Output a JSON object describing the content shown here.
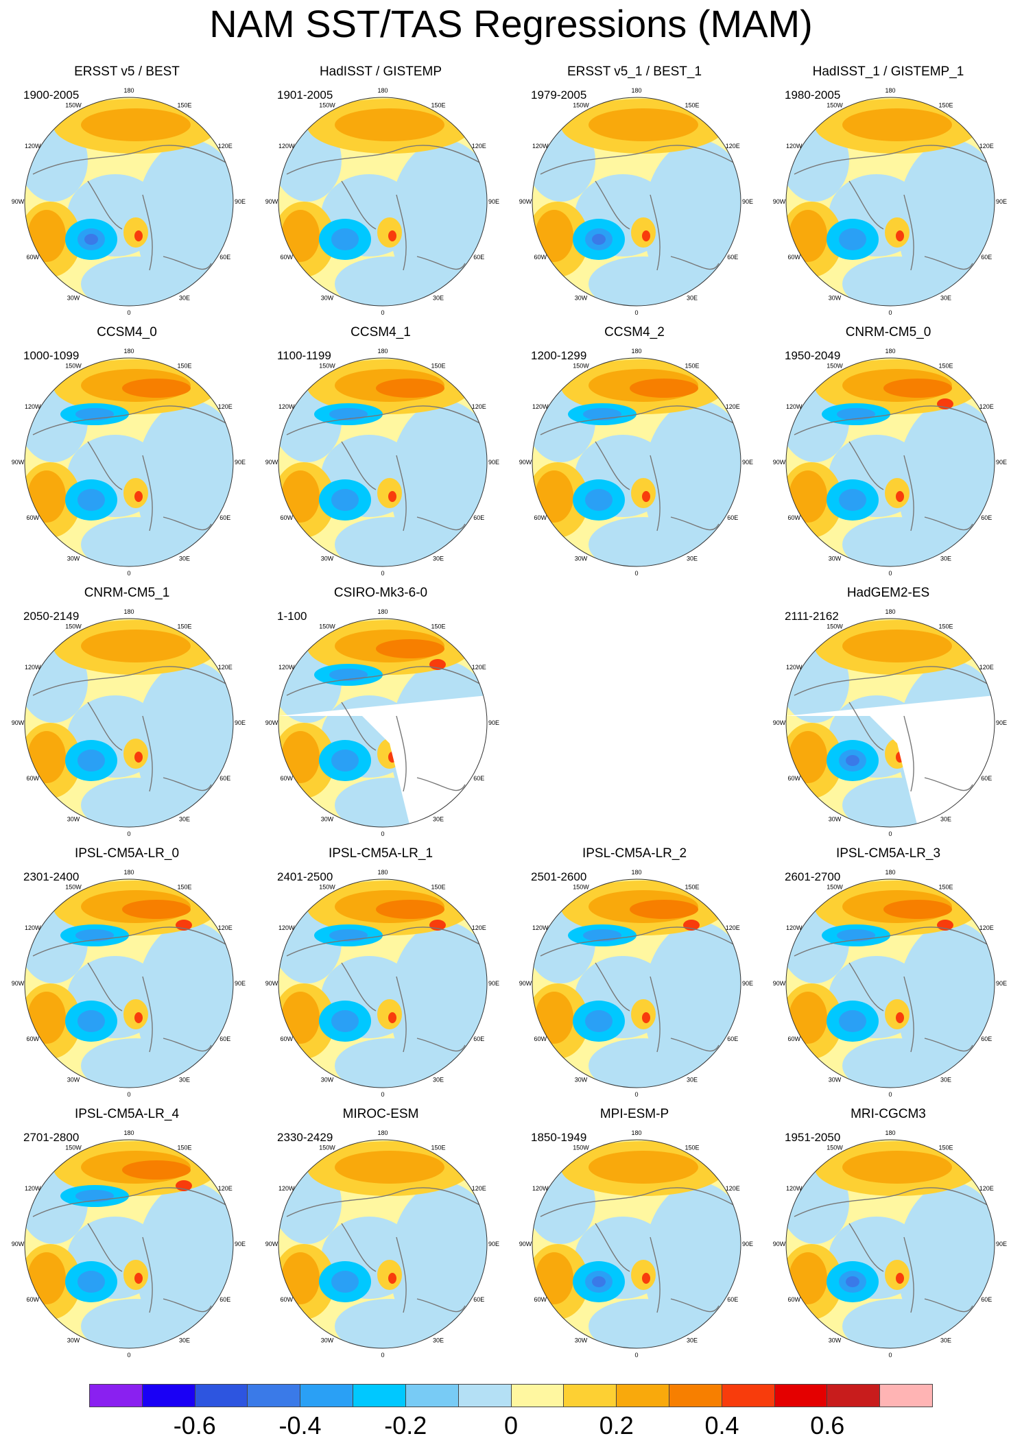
{
  "title": "NAM SST/TAS Regressions (MAM)",
  "lon_labels": [
    "180",
    "150E",
    "120E",
    "90E",
    "60E",
    "30E",
    "0",
    "30W",
    "60W",
    "90W",
    "120W",
    "150W"
  ],
  "colorbar": {
    "colors": [
      "#8a20f0",
      "#1a00f5",
      "#2d55e0",
      "#3a7ae8",
      "#2aa0f5",
      "#00c8ff",
      "#78cbf5",
      "#b4e0f5",
      "#fff7a0",
      "#fdd033",
      "#f9a90c",
      "#f77f00",
      "#f83c0c",
      "#e40000",
      "#c81c1c",
      "#ffb4b4"
    ],
    "tick_labels": [
      "-0.6",
      "-0.4",
      "-0.2",
      "0",
      "0.2",
      "0.4",
      "0.6"
    ]
  },
  "panels": [
    {
      "title": "ERSST v5 / BEST",
      "years": "1900-2005",
      "pattern": 1,
      "blank": false
    },
    {
      "title": "HadISST / GISTEMP",
      "years": "1901-2005",
      "pattern": 2,
      "blank": false
    },
    {
      "title": "ERSST v5_1 / BEST_1",
      "years": "1979-2005",
      "pattern": 1,
      "blank": false
    },
    {
      "title": "HadISST_1 / GISTEMP_1",
      "years": "1980-2005",
      "pattern": 2,
      "blank": false
    },
    {
      "title": "CCSM4_0",
      "years": "1000-1099",
      "pattern": 3,
      "blank": false
    },
    {
      "title": "CCSM4_1",
      "years": "1100-1199",
      "pattern": 3,
      "blank": false
    },
    {
      "title": "CCSM4_2",
      "years": "1200-1299",
      "pattern": 3,
      "blank": false
    },
    {
      "title": "CNRM-CM5_0",
      "years": "1950-2049",
      "pattern": 4,
      "blank": false
    },
    {
      "title": "CNRM-CM5_1",
      "years": "2050-2149",
      "pattern": 5,
      "blank": false
    },
    {
      "title": "CSIRO-Mk3-6-0",
      "years": "1-100",
      "pattern": 4,
      "blank": true
    },
    null,
    {
      "title": "HadGEM2-ES",
      "years": "2111-2162",
      "pattern": 6,
      "blank": true
    },
    {
      "title": "IPSL-CM5A-LR_0",
      "years": "2301-2400",
      "pattern": 4,
      "blank": false
    },
    {
      "title": "IPSL-CM5A-LR_1",
      "years": "2401-2500",
      "pattern": 4,
      "blank": false
    },
    {
      "title": "IPSL-CM5A-LR_2",
      "years": "2501-2600",
      "pattern": 4,
      "blank": false
    },
    {
      "title": "IPSL-CM5A-LR_3",
      "years": "2601-2700",
      "pattern": 4,
      "blank": false
    },
    {
      "title": "IPSL-CM5A-LR_4",
      "years": "2701-2800",
      "pattern": 4,
      "blank": false
    },
    {
      "title": "MIROC-ESM",
      "years": "2330-2429",
      "pattern": 5,
      "blank": false
    },
    {
      "title": "MPI-ESM-P",
      "years": "1850-1949",
      "pattern": 6,
      "blank": false
    },
    {
      "title": "MRI-CGCM3",
      "years": "1951-2050",
      "pattern": 6,
      "blank": false
    }
  ]
}
